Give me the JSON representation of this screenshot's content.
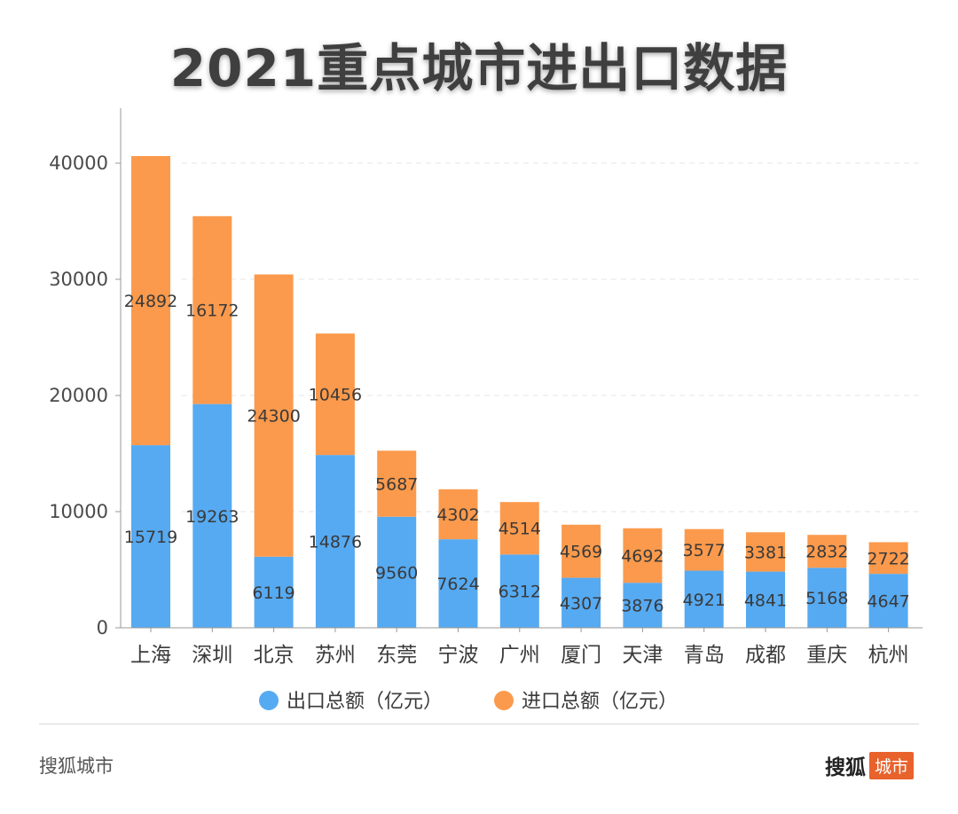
{
  "header": {
    "title": "2021重点城市进出口数据"
  },
  "footer": {
    "source": "搜狐城市",
    "brand_main": "搜狐",
    "brand_tag": "城市"
  },
  "colors": {
    "export": "#56aaf2",
    "import": "#fb9a4c"
  },
  "chart_data": {
    "type": "bar",
    "stacked": true,
    "title": "2021重点城市进出口数据",
    "xlabel": "",
    "ylabel": "",
    "ylim": [
      0,
      44000
    ],
    "yticks": [
      0,
      10000,
      20000,
      30000,
      40000
    ],
    "grid": true,
    "legend_position": "bottom",
    "categories": [
      "上海",
      "深圳",
      "北京",
      "苏州",
      "东莞",
      "宁波",
      "广州",
      "厦门",
      "天津",
      "青岛",
      "成都",
      "重庆",
      "杭州"
    ],
    "series": [
      {
        "name": "出口总额（亿元）",
        "values": [
          15719,
          19263,
          6119,
          14876,
          9560,
          7624,
          6312,
          4307,
          3876,
          4921,
          4841,
          5168,
          4647
        ]
      },
      {
        "name": "进口总额（亿元）",
        "values": [
          24892,
          16172,
          24300,
          10456,
          5687,
          4302,
          4514,
          4569,
          4692,
          3577,
          3381,
          2832,
          2722
        ]
      }
    ]
  }
}
